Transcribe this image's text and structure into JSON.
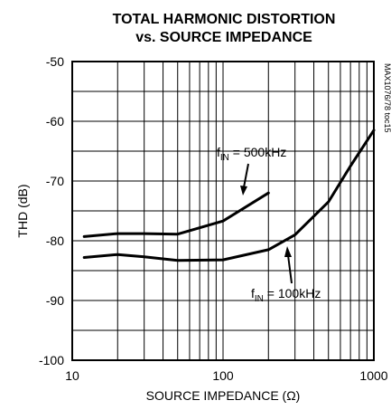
{
  "chart_data": {
    "type": "line",
    "title": "TOTAL HARMONIC DISTORTION",
    "subtitle": "vs. SOURCE IMPEDANCE",
    "xlabel": "SOURCE IMPEDANCE (Ω)",
    "ylabel": "THD (dB)",
    "xscale": "log",
    "xlim": [
      10,
      1000
    ],
    "ylim": [
      -100,
      -50
    ],
    "xticks": [
      10,
      100,
      1000
    ],
    "xtick_labels": [
      "10",
      "100",
      "1000"
    ],
    "yticks": [
      -100,
      -90,
      -80,
      -70,
      -60,
      -50
    ],
    "ytick_labels": [
      "-100",
      "-90",
      "-80",
      "-70",
      "-60",
      "-50"
    ],
    "grid": true,
    "side_code": "MAX1076/78 toc15",
    "series": [
      {
        "name_main": "f",
        "name_sub": "IN",
        "name_rest": " = 500kHz",
        "x": [
          12,
          20,
          30,
          50,
          100,
          200
        ],
        "y": [
          -79.3,
          -78.8,
          -78.8,
          -78.9,
          -76.7,
          -72.0
        ]
      },
      {
        "name_main": "f",
        "name_sub": "IN",
        "name_rest": " = 100kHz",
        "x": [
          12,
          20,
          30,
          50,
          100,
          200,
          300,
          500,
          700,
          1000
        ],
        "y": [
          -82.8,
          -82.3,
          -82.7,
          -83.3,
          -83.2,
          -81.5,
          -79.0,
          -73.5,
          -67.5,
          -61.5
        ]
      }
    ]
  }
}
